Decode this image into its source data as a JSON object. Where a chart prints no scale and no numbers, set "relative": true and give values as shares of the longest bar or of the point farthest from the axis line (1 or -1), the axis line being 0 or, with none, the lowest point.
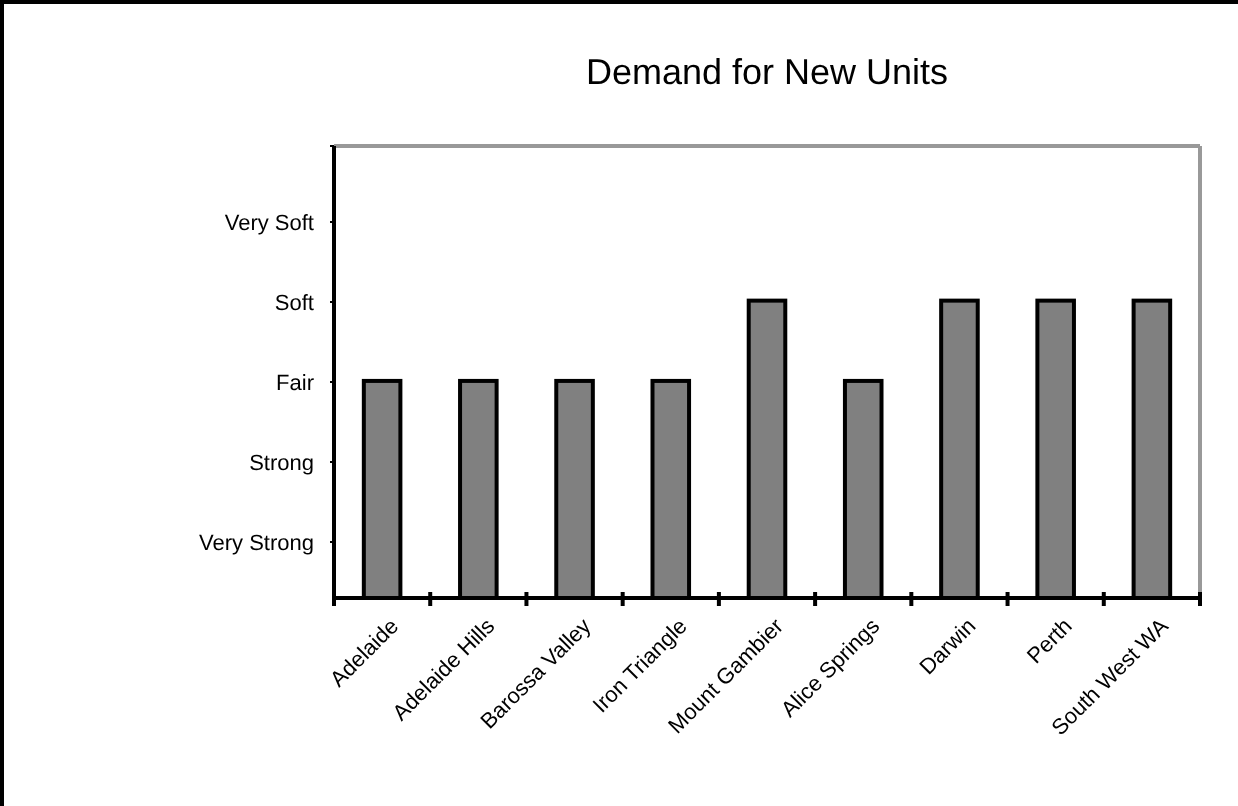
{
  "chart_data": {
    "type": "bar",
    "title": "Demand for New Units",
    "categories": [
      "Adelaide",
      "Adelaide Hills",
      "Barossa Valley",
      "Iron Triangle",
      "Mount Gambier",
      "Alice Springs",
      "Darwin",
      "Perth",
      "South West WA"
    ],
    "values": [
      0.73,
      0.73,
      0.73,
      0.73,
      1,
      0.73,
      1,
      1,
      1
    ],
    "color": "#808080",
    "relative": true,
    "annotations": [
      "Very Strong",
      "Strong",
      "Fair",
      "Soft",
      "Very Soft"
    ]
  }
}
